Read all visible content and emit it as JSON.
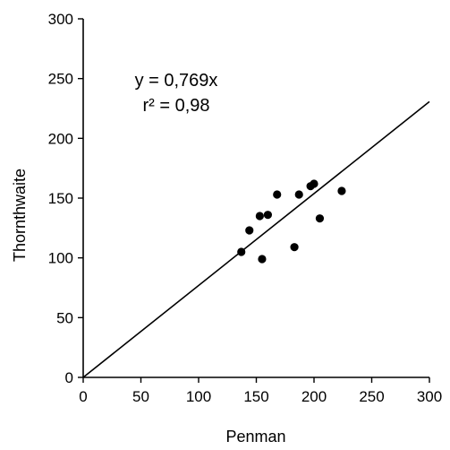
{
  "chart_data": {
    "type": "scatter",
    "title": "",
    "xlabel": "Penman",
    "ylabel": "Thornthwaite",
    "xlim": [
      0,
      300
    ],
    "ylim": [
      0,
      300
    ],
    "xticks": [
      0,
      50,
      100,
      150,
      200,
      250,
      300
    ],
    "yticks": [
      0,
      50,
      100,
      150,
      200,
      250,
      300
    ],
    "grid": false,
    "legend": "none",
    "colors": {
      "points": "#000000",
      "line": "#000000",
      "axes": "#000000"
    },
    "points": [
      {
        "x": 137,
        "y": 105
      },
      {
        "x": 144,
        "y": 123
      },
      {
        "x": 153,
        "y": 135
      },
      {
        "x": 155,
        "y": 99
      },
      {
        "x": 160,
        "y": 136
      },
      {
        "x": 168,
        "y": 153
      },
      {
        "x": 183,
        "y": 109
      },
      {
        "x": 187,
        "y": 153
      },
      {
        "x": 197,
        "y": 160
      },
      {
        "x": 200,
        "y": 162
      },
      {
        "x": 205,
        "y": 133
      },
      {
        "x": 224,
        "y": 156
      }
    ],
    "trendline": {
      "slope": 0.769,
      "intercept": 0,
      "x_range": [
        0,
        300
      ]
    },
    "annotations": {
      "equation": "y = 0,769x",
      "r_squared": "r² = 0,98"
    }
  }
}
